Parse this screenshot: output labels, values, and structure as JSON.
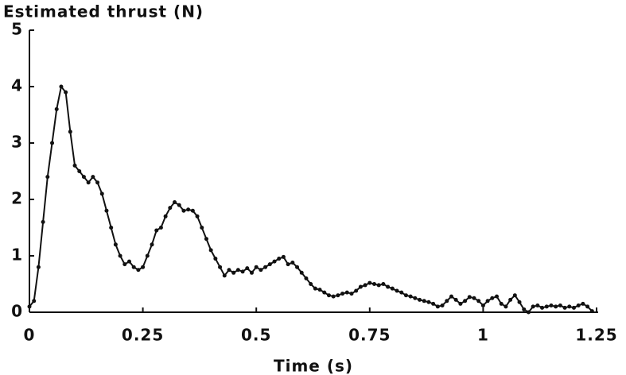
{
  "chart_data": {
    "type": "line",
    "y_title": "Estimated thrust (N)",
    "x_title": "Time (s)",
    "x": [
      0,
      0.01,
      0.02,
      0.03,
      0.04,
      0.05,
      0.06,
      0.07,
      0.08,
      0.09,
      0.1,
      0.11,
      0.12,
      0.13,
      0.14,
      0.15,
      0.16,
      0.17,
      0.18,
      0.19,
      0.2,
      0.21,
      0.22,
      0.23,
      0.24,
      0.25,
      0.26,
      0.27,
      0.28,
      0.29,
      0.3,
      0.31,
      0.32,
      0.33,
      0.34,
      0.35,
      0.36,
      0.37,
      0.38,
      0.39,
      0.4,
      0.41,
      0.42,
      0.43,
      0.44,
      0.45,
      0.46,
      0.47,
      0.48,
      0.49,
      0.5,
      0.51,
      0.52,
      0.53,
      0.54,
      0.55,
      0.56,
      0.57,
      0.58,
      0.59,
      0.6,
      0.61,
      0.62,
      0.63,
      0.64,
      0.65,
      0.66,
      0.67,
      0.68,
      0.69,
      0.7,
      0.71,
      0.72,
      0.73,
      0.74,
      0.75,
      0.76,
      0.77,
      0.78,
      0.79,
      0.8,
      0.81,
      0.82,
      0.83,
      0.84,
      0.85,
      0.86,
      0.87,
      0.88,
      0.89,
      0.9,
      0.91,
      0.92,
      0.93,
      0.94,
      0.95,
      0.96,
      0.97,
      0.98,
      0.99,
      1,
      1.01,
      1.02,
      1.03,
      1.04,
      1.05,
      1.06,
      1.07,
      1.08,
      1.09,
      1.1,
      1.11,
      1.12,
      1.13,
      1.14,
      1.15,
      1.16,
      1.17,
      1.18,
      1.19,
      1.2,
      1.21,
      1.22,
      1.23,
      1.24
    ],
    "values": [
      0.1,
      0.2,
      0.8,
      1.6,
      2.4,
      3.0,
      3.6,
      4.0,
      3.9,
      3.2,
      2.6,
      2.5,
      2.4,
      2.3,
      2.4,
      2.3,
      2.1,
      1.8,
      1.5,
      1.2,
      1.0,
      0.85,
      0.9,
      0.8,
      0.75,
      0.8,
      1.0,
      1.2,
      1.45,
      1.5,
      1.7,
      1.85,
      1.95,
      1.9,
      1.8,
      1.82,
      1.8,
      1.7,
      1.5,
      1.3,
      1.1,
      0.95,
      0.8,
      0.65,
      0.75,
      0.7,
      0.75,
      0.72,
      0.78,
      0.7,
      0.8,
      0.75,
      0.8,
      0.85,
      0.9,
      0.95,
      0.98,
      0.85,
      0.88,
      0.8,
      0.7,
      0.6,
      0.5,
      0.42,
      0.4,
      0.35,
      0.3,
      0.28,
      0.3,
      0.33,
      0.35,
      0.33,
      0.38,
      0.45,
      0.48,
      0.52,
      0.5,
      0.48,
      0.5,
      0.45,
      0.42,
      0.38,
      0.35,
      0.3,
      0.28,
      0.25,
      0.22,
      0.2,
      0.18,
      0.15,
      0.1,
      0.12,
      0.2,
      0.28,
      0.22,
      0.15,
      0.2,
      0.27,
      0.25,
      0.2,
      0.12,
      0.2,
      0.25,
      0.28,
      0.15,
      0.1,
      0.22,
      0.3,
      0.18,
      0.05,
      0.0,
      0.1,
      0.12,
      0.08,
      0.1,
      0.12,
      0.1,
      0.12,
      0.08,
      0.1,
      0.08,
      0.12,
      0.15,
      0.1,
      0.02
    ],
    "color": "#111111",
    "xlim": [
      0,
      1.25
    ],
    "xticks": [
      0,
      0.25,
      0.5,
      0.75,
      1,
      1.25
    ],
    "ylim": [
      0,
      5
    ],
    "yticks": [
      0,
      1,
      2,
      3,
      4,
      5
    ]
  }
}
